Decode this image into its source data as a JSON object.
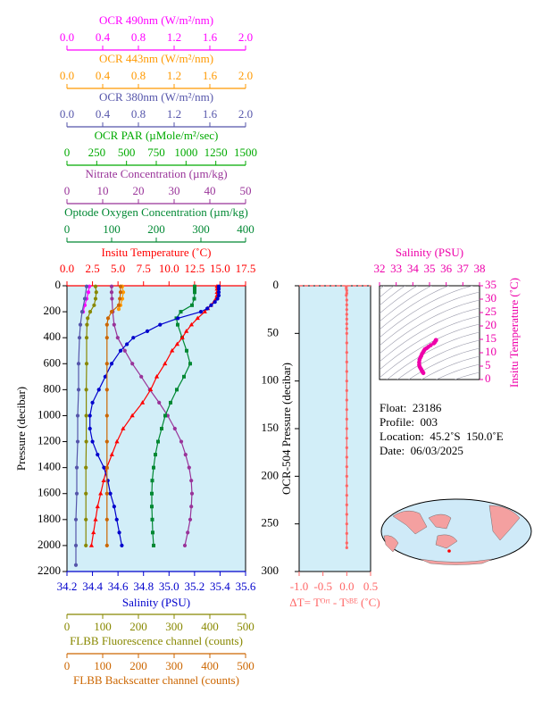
{
  "chart_data": [
    {
      "type": "profile",
      "ylabel": "Pressure (decibar)",
      "ylim": [
        0,
        2200
      ],
      "yticks": [
        0,
        200,
        400,
        600,
        800,
        1000,
        1200,
        1400,
        1600,
        1800,
        2000,
        2200
      ],
      "top_axes": [
        {
          "label": "OCR 490nm (W/m²/nm)",
          "color": "#ff00ff",
          "xlim": [
            0,
            2
          ],
          "xticks": [
            {
              "value": 0,
              "label": "0.0"
            },
            0.4,
            0.8,
            1.2,
            1.6,
            {
              "value": 2,
              "label": "2.0"
            }
          ],
          "marker": "circle",
          "pressure": [
            5,
            50,
            100,
            150,
            200
          ],
          "values": [
            0.25,
            0.24,
            0.22,
            0.2,
            0.18
          ]
        },
        {
          "label": "OCR 443nm (W/m²/nm)",
          "color": "#ff9900",
          "xlim": [
            0,
            2
          ],
          "xticks": [
            {
              "value": 0,
              "label": "0.0"
            },
            0.4,
            0.8,
            1.2,
            1.6,
            {
              "value": 2,
              "label": "2.0"
            }
          ],
          "marker": "circle",
          "pressure": [
            5,
            50,
            100,
            150,
            180
          ],
          "values": [
            0.62,
            0.63,
            0.62,
            0.6,
            0.58
          ]
        },
        {
          "label": "OCR 380nm (W/m²/nm)",
          "color": "#5555aa",
          "xlim": [
            0,
            2
          ],
          "xticks": [
            {
              "value": 0,
              "label": "0.0"
            },
            0.4,
            0.8,
            1.2,
            1.6,
            {
              "value": 2,
              "label": "2.0"
            }
          ],
          "marker": "circle",
          "pressure": [
            5,
            100,
            200,
            300,
            400,
            600,
            800,
            1000,
            1200,
            1400,
            1600,
            1800,
            2000,
            2150
          ],
          "values": [
            0.22,
            0.2,
            0.17,
            0.15,
            0.14,
            0.13,
            0.13,
            0.12,
            0.12,
            0.11,
            0.11,
            0.1,
            0.1,
            0.1
          ]
        },
        {
          "label": "OCR PAR (µMole/m²/sec)",
          "color": "#00aa00",
          "xlim": [
            0,
            1500
          ],
          "xticks": [
            0,
            250,
            500,
            750,
            1000,
            1250,
            1500
          ]
        },
        {
          "label": "Nitrate Concentration (µm/kg)",
          "color": "#993399",
          "xlim": [
            0,
            50
          ],
          "xticks": [
            0,
            10,
            20,
            30,
            40,
            50
          ],
          "marker": "circle",
          "pressure": [
            5,
            50,
            100,
            200,
            300,
            400,
            500,
            600,
            700,
            800,
            900,
            1000,
            1100,
            1200,
            1300,
            1400,
            1500,
            1600,
            1700,
            1800,
            1900,
            2000
          ],
          "values": [
            12.5,
            12.5,
            12.6,
            12.8,
            13.2,
            14.2,
            16.2,
            18.3,
            20.8,
            23.2,
            25.8,
            28.2,
            30.2,
            32,
            33.2,
            34.2,
            34.8,
            35,
            34.8,
            34.5,
            33.8,
            33
          ]
        },
        {
          "label": "Optode Oxygen Concentration (µm/kg)",
          "color": "#008833",
          "xlim": [
            0,
            400
          ],
          "xticks": [
            0,
            100,
            200,
            300,
            400
          ],
          "marker": "square",
          "pressure": [
            5,
            25,
            50,
            100,
            150,
            200,
            250,
            300,
            400,
            500,
            600,
            700,
            800,
            900,
            1000,
            1100,
            1200,
            1300,
            1400,
            1500,
            1600,
            1700,
            1800,
            1900,
            2000
          ],
          "values": [
            286,
            286,
            286,
            285,
            280,
            255,
            245,
            248,
            258,
            268,
            276,
            262,
            246,
            232,
            220,
            212,
            204,
            198,
            194,
            191,
            190,
            190,
            191,
            192,
            194
          ]
        },
        {
          "label": "Insitu Temperature (˚C)",
          "color": "#ff0000",
          "xlim": [
            0,
            17.5
          ],
          "xticks": [
            {
              "value": 0,
              "label": "0.0"
            },
            2.5,
            {
              "value": 5,
              "label": "5.0"
            },
            7.5,
            {
              "value": 10,
              "label": "10.0"
            },
            12.5,
            {
              "value": 15,
              "label": "15.0"
            },
            17.5
          ],
          "marker": "triangle",
          "pressure": [
            5,
            25,
            50,
            75,
            100,
            125,
            150,
            175,
            200,
            250,
            300,
            350,
            400,
            450,
            500,
            600,
            700,
            800,
            900,
            1000,
            1100,
            1200,
            1300,
            1400,
            1500,
            1600,
            1700,
            1800,
            1900,
            2000
          ],
          "values": [
            14.7,
            14.7,
            14.7,
            14.7,
            14.6,
            14.4,
            14.1,
            13.8,
            13.5,
            12.8,
            12.2,
            11.7,
            11.3,
            10.8,
            10.3,
            9.6,
            8.8,
            8.2,
            7.4,
            6.4,
            5.5,
            4.9,
            4.4,
            3.9,
            3.6,
            3.3,
            3.0,
            2.8,
            2.6,
            2.4
          ]
        }
      ],
      "bottom_axes": [
        {
          "label": "Salinity (PSU)",
          "color": "#0000cc",
          "xlim": [
            34.2,
            35.6
          ],
          "xticks": [
            34.2,
            34.4,
            34.6,
            34.8,
            {
              "value": 35,
              "label": "35.0"
            },
            35.2,
            35.4,
            35.6
          ],
          "marker": "circle",
          "pressure": [
            5,
            25,
            50,
            75,
            100,
            125,
            150,
            175,
            200,
            250,
            300,
            350,
            400,
            450,
            500,
            600,
            700,
            800,
            900,
            1000,
            1100,
            1200,
            1300,
            1400,
            1500,
            1600,
            1700,
            1800,
            1900,
            2000
          ],
          "values": [
            35.39,
            35.39,
            35.39,
            35.39,
            35.38,
            35.36,
            35.33,
            35.3,
            35.25,
            35.07,
            34.93,
            34.83,
            34.72,
            34.67,
            34.62,
            34.55,
            34.5,
            34.45,
            34.4,
            34.38,
            34.38,
            34.4,
            34.44,
            34.49,
            34.52,
            34.54,
            34.57,
            34.59,
            34.61,
            34.63
          ]
        },
        {
          "label": "FLBB Fluorescence channel (counts)",
          "color": "#888800",
          "xlim": [
            0,
            500
          ],
          "xticks": [
            0,
            100,
            200,
            300,
            400,
            500
          ],
          "marker": "circle",
          "pressure": [
            5,
            50,
            100,
            150,
            200,
            250,
            300,
            400,
            600,
            800,
            1000,
            1200,
            1400,
            1600,
            1800,
            2000
          ],
          "values": [
            80,
            82,
            80,
            76,
            65,
            58,
            56,
            55,
            55,
            54,
            54,
            54,
            53,
            53,
            53,
            53
          ]
        },
        {
          "label": "FLBB Backscatter channel (counts)",
          "color": "#cc6600",
          "xlim": [
            0,
            500
          ],
          "xticks": [
            0,
            100,
            200,
            300,
            400,
            500
          ],
          "marker": "circle",
          "pressure": [
            5,
            50,
            100,
            150,
            200,
            250,
            300,
            400,
            600,
            800,
            1000,
            1200,
            1400,
            1600,
            1800,
            2000
          ],
          "values": [
            150,
            150,
            148,
            145,
            125,
            115,
            112,
            112,
            112,
            112,
            112,
            112,
            112,
            112,
            112,
            112
          ]
        }
      ]
    },
    {
      "type": "scatter",
      "ylabel": "OCR-504 Pressure (decibar)",
      "xlabel": "ΔT= Tᴼʳᵗ - Tˢᴮᴱ (˚C)",
      "color": "#ff6666",
      "xlim": [
        -1,
        0.5
      ],
      "xticks": [
        {
          "value": -1,
          "label": "-1.0"
        },
        -0.5,
        {
          "value": 0,
          "label": "0.0"
        },
        0.5
      ],
      "ylim": [
        0,
        300
      ],
      "yticks": [
        0,
        50,
        100,
        150,
        200,
        250,
        300
      ],
      "y": [
        1,
        3,
        5,
        8,
        10,
        15,
        20,
        25,
        30,
        35,
        40,
        45,
        50,
        60,
        70,
        80,
        90,
        100,
        110,
        120,
        130,
        140,
        150,
        160,
        170,
        180,
        190,
        200,
        210,
        220,
        230,
        240,
        250,
        260,
        270,
        275
      ],
      "x": [
        -0.01,
        -0.01,
        0,
        0,
        -0.01,
        0,
        0,
        0,
        0,
        0,
        0,
        0,
        0,
        0,
        0,
        0,
        0,
        0,
        0,
        0,
        0,
        0,
        0,
        0,
        0,
        0,
        0,
        0,
        0,
        0,
        0,
        0,
        0,
        0,
        0,
        0
      ]
    },
    {
      "type": "ts",
      "xlabel": "Salinity (PSU)",
      "ylabel": "Insitu Temperature (˚C)",
      "color": "#ee00aa",
      "xlim": [
        32,
        38
      ],
      "xticks": [
        32,
        33,
        34,
        35,
        36,
        37,
        38
      ],
      "ylim": [
        0,
        35
      ],
      "yticks": [
        0,
        5,
        10,
        15,
        20,
        25,
        30,
        35
      ]
    }
  ],
  "info": [
    "Float:  23186",
    "Profile:  003",
    "Location:  45.2˚S  150.0˚E",
    "Date:  06/03/2025"
  ]
}
